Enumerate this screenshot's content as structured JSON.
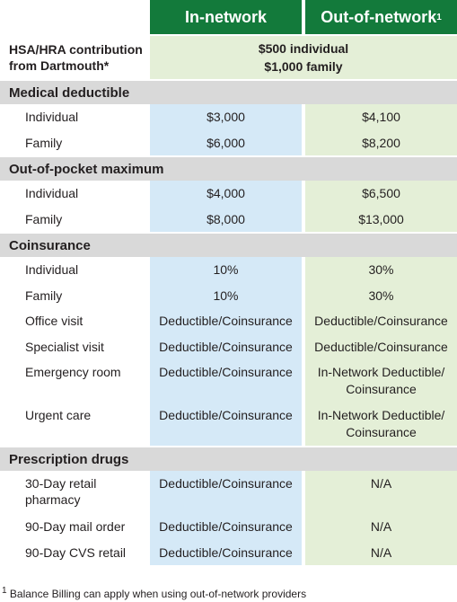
{
  "table": {
    "header": [
      "In-network",
      "Out-of-network"
    ],
    "header_note": "1",
    "contribution": {
      "label": "HSA/HRA contribution\nfrom Dartmouth*",
      "value": "$500 individual\n$1,000 family"
    },
    "sections": [
      {
        "title": "Medical deductible",
        "rows": [
          [
            "Individual",
            "$3,000",
            "$4,100"
          ],
          [
            "Family",
            "$6,000",
            "$8,200"
          ]
        ]
      },
      {
        "title": "Out-of-pocket maximum",
        "rows": [
          [
            "Individual",
            "$4,000",
            "$6,500"
          ],
          [
            "Family",
            "$8,000",
            "$13,000"
          ]
        ]
      },
      {
        "title": "Coinsurance",
        "rows": [
          [
            "Individual",
            "10%",
            "30%"
          ],
          [
            "Family",
            "10%",
            "30%"
          ],
          [
            "Office visit",
            "Deductible/Coinsurance",
            "Deductible/Coinsurance"
          ],
          [
            "Specialist visit",
            "Deductible/Coinsurance",
            "Deductible/Coinsurance"
          ],
          [
            "Emergency room",
            "Deductible/Coinsurance",
            "In-Network Deductible/\nCoinsurance"
          ],
          [
            "Urgent care",
            "Deductible/Coinsurance",
            "In-Network Deductible/\nCoinsurance"
          ]
        ]
      },
      {
        "title": "Prescription drugs",
        "rows": [
          [
            "30-Day retail\npharmacy",
            "Deductible/Coinsurance",
            "N/A"
          ],
          [
            "90-Day mail order",
            "Deductible/Coinsurance",
            "N/A"
          ],
          [
            "90-Day CVS retail",
            "Deductible/Coinsurance",
            "N/A"
          ]
        ]
      }
    ]
  },
  "footnote": {
    "marker": "1",
    "text": "Balance Billing can apply when using out-of-network providers"
  }
}
